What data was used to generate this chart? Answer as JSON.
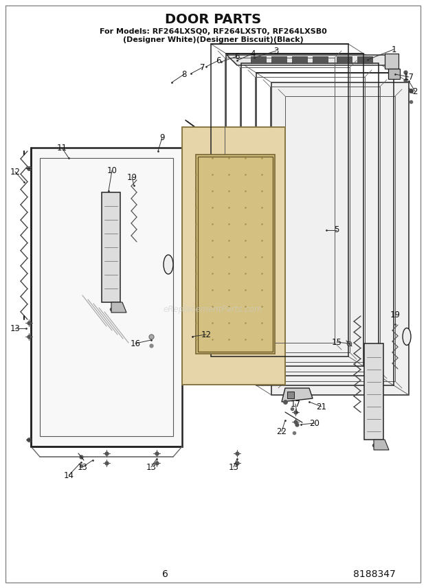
{
  "title": "DOOR PARTS",
  "subtitle_line1": "For Models: RF264LXSQ0, RF264LXST0, RF264LXSB0",
  "subtitle_line2": "(Designer White)(Designer Biscuit)(Black)",
  "page_number": "6",
  "part_number": "8188347",
  "background_color": "#ffffff",
  "watermark": "eReplacementParts.com",
  "border_color": "#999999",
  "line_color": "#222222",
  "label_fontsize": 8.5,
  "title_fontsize": 13,
  "subtitle_fontsize": 8
}
